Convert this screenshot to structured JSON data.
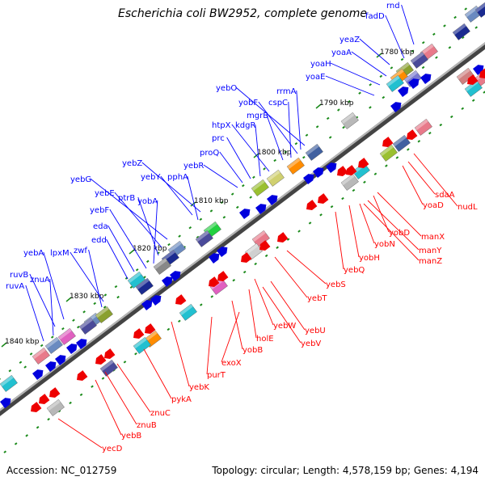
{
  "title": "Escherichia coli BW2952, complete genome",
  "accession_text": "Accession: NC_012759",
  "summary_text": "Topology: circular; Length: 4,578,159 bp; Genes: 4,194",
  "colors": {
    "forward_label": "#0000ff",
    "reverse_label": "#ff0000",
    "backbone": "#8a8a8a",
    "tick": "#1a8a1a"
  },
  "kbp_ticks": [
    {
      "kbp": 1780,
      "label": "1780 kbp"
    },
    {
      "kbp": 1790,
      "label": "1790 kbp"
    },
    {
      "kbp": 1800,
      "label": "1800 kbp"
    },
    {
      "kbp": 1810,
      "label": "1810 kbp"
    },
    {
      "kbp": 1820,
      "label": "1820 kbp"
    },
    {
      "kbp": 1830,
      "label": "1830 kbp"
    },
    {
      "kbp": 1840,
      "label": "1840 kbp"
    }
  ],
  "forward_genes": [
    "rnd",
    "fadD",
    "yeaZ",
    "yoaA",
    "yoaH",
    "yoaE",
    "yebO",
    "yobF",
    "cspC",
    "rrmA",
    "mgrB",
    "htpX",
    "kdgR",
    "prc",
    "proQ",
    "yebR",
    "yebZ",
    "yebY",
    "pphA",
    "yebG",
    "yebE",
    "ptrB",
    "yobA",
    "yebF",
    "eda",
    "edd",
    "lpxM",
    "zwf",
    "yebA",
    "ruvB",
    "znuA",
    "ruvA"
  ],
  "reverse_genes": [
    "sdaA",
    "yoaD",
    "nudL",
    "manX",
    "yobD",
    "manY",
    "manZ",
    "yobN",
    "yobH",
    "yebQ",
    "yebS",
    "yebT",
    "yebU",
    "yebW",
    "yebV",
    "holE",
    "yobB",
    "exoX",
    "purT",
    "yebK",
    "pykA",
    "znuC",
    "znuB",
    "yebB",
    "yecD"
  ]
}
